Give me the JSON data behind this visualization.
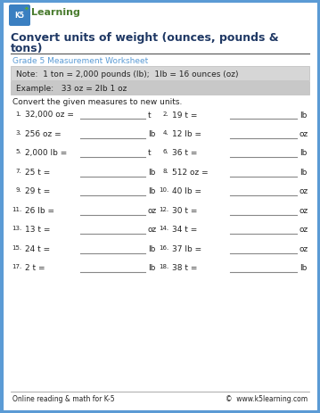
{
  "border_color": "#5b9bd5",
  "bg_color": "#ffffff",
  "title_line1": "Convert units of weight (ounces, pounds &",
  "title_line2": "tons)",
  "title_color": "#1f3864",
  "subtitle": "Grade 5 Measurement Worksheet",
  "subtitle_color": "#5b9bd5",
  "note_bg": "#d6d6d6",
  "example_bg": "#c8c8c8",
  "note_text": "Note:  1 ton = 2,000 pounds (lb);  1lb = 16 ounces (oz)",
  "example_text": "Example:   33 oz = 2lb 1 oz",
  "instruction": "Convert the given measures to new units.",
  "problems": [
    [
      "1.",
      "32,000 oz =",
      "t"
    ],
    [
      "2.",
      "19 t =",
      "lb"
    ],
    [
      "3.",
      "256 oz =",
      "lb"
    ],
    [
      "4.",
      "12 lb =",
      "oz"
    ],
    [
      "5.",
      "2,000 lb =",
      "t"
    ],
    [
      "6.",
      "36 t =",
      "lb"
    ],
    [
      "7.",
      "25 t =",
      "lb"
    ],
    [
      "8.",
      "512 oz =",
      "lb"
    ],
    [
      "9.",
      "29 t =",
      "lb"
    ],
    [
      "10.",
      "40 lb =",
      "oz"
    ],
    [
      "11.",
      "26 lb =",
      "oz"
    ],
    [
      "12.",
      "30 t =",
      "oz"
    ],
    [
      "13.",
      "13 t =",
      "oz"
    ],
    [
      "14.",
      "34 t =",
      "oz"
    ],
    [
      "15.",
      "24 t =",
      "lb"
    ],
    [
      "16.",
      "37 lb =",
      "oz"
    ],
    [
      "17.",
      "2 t =",
      "lb"
    ],
    [
      "18.",
      "38 t =",
      "lb"
    ]
  ],
  "footer_left": "Online reading & math for K-5",
  "footer_right": "©  www.k5learning.com",
  "text_color": "#222222",
  "line_color": "#888888",
  "logo_k5_color": "#4a7c2f",
  "logo_learning_color": "#4a7c2f",
  "logo_icon_blue": "#3a7fc1",
  "logo_icon_green": "#5aaa32"
}
